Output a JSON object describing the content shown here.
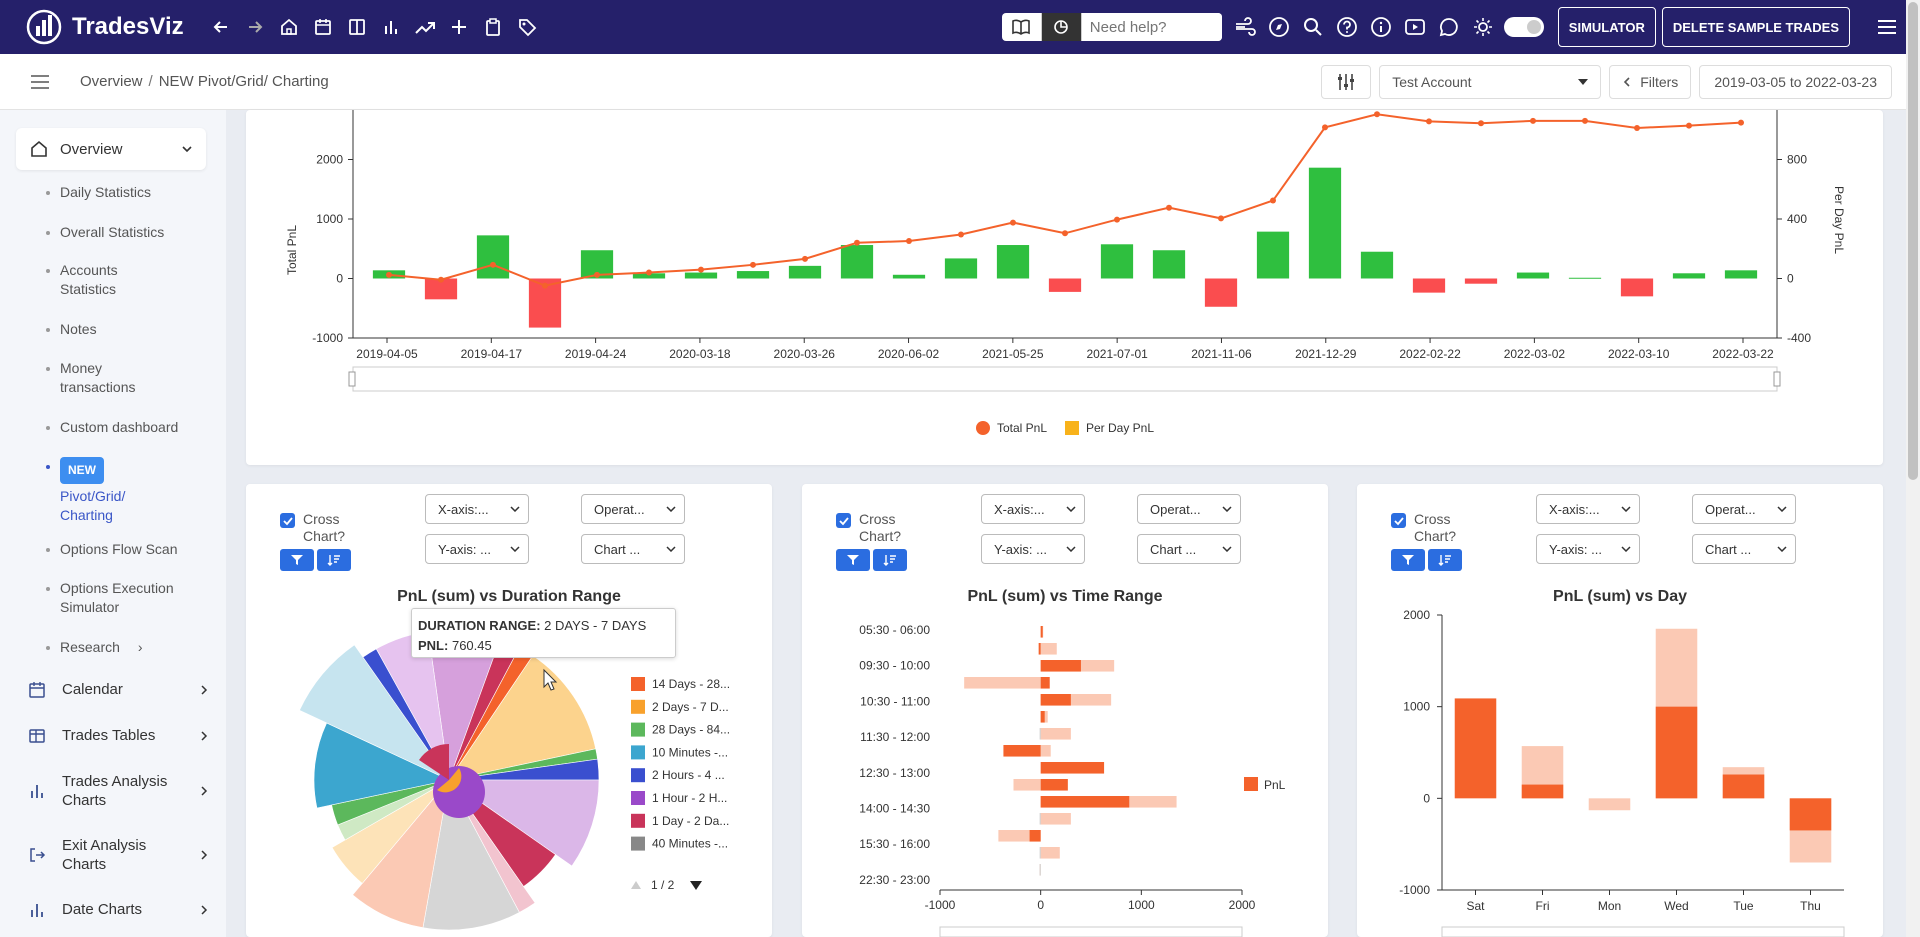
{
  "app": {
    "name": "TradesViz"
  },
  "topnav": {
    "search_placeholder": "Need help?",
    "simulator_label": "SIMULATOR",
    "delete_label": "DELETE SAMPLE TRADES"
  },
  "breadcrumb": {
    "root": "Overview",
    "separator": "/",
    "current": "NEW Pivot/Grid/ Charting"
  },
  "toolbar": {
    "account": "Test Account",
    "filters_label": "Filters",
    "date_range": "2019-03-05 to 2022-03-23"
  },
  "sidebar": {
    "overview_label": "Overview",
    "sub_items": [
      "Daily Statistics",
      "Overall Statistics",
      "Accounts Statistics",
      "Notes",
      "Money transactions",
      "Custom dashboard"
    ],
    "active": {
      "badge": "NEW",
      "label": "Pivot/Grid/ Charting"
    },
    "sub_items_2": [
      "Options Flow Scan",
      "Options Execution Simulator",
      "Research"
    ],
    "main_items": [
      "Calendar",
      "Trades Tables",
      "Trades Analysis Charts",
      "Exit Analysis Charts",
      "Date Charts"
    ]
  },
  "controls": {
    "cross_chart_label": "Cross Chart?",
    "x_axis": "X-axis:...",
    "y_axis": "Y-axis: ...",
    "operation": "Operat...",
    "chart_type": "Chart ..."
  },
  "chart_data": [
    {
      "type": "bar",
      "title": "",
      "ylabel": "Total PnL",
      "ylabel_right": "Per Day PnL",
      "ylim": [
        -1000,
        3000
      ],
      "ylim_right": [
        -400,
        1200
      ],
      "yticks": [
        "2000",
        "1000",
        "0",
        "-1000"
      ],
      "yticks_right": [
        "800",
        "400",
        "0",
        "-400"
      ],
      "x_tick_labels": [
        "2019-04-05",
        "2019-04-17",
        "2019-04-24",
        "2020-03-18",
        "2020-03-26",
        "2020-06-02",
        "2021-05-25",
        "2021-07-01",
        "2021-11-06",
        "2021-12-29",
        "2022-02-22",
        "2022-03-02",
        "2022-03-10",
        "2022-03-22"
      ],
      "bar_values": [
        55,
        -140,
        290,
        -330,
        190,
        35,
        40,
        50,
        85,
        225,
        25,
        135,
        225,
        -90,
        230,
        190,
        -190,
        315,
        745,
        180,
        -95,
        -35,
        40,
        5,
        -120,
        35,
        55
      ],
      "line_values": [
        60,
        -20,
        230,
        -120,
        60,
        100,
        150,
        230,
        330,
        600,
        630,
        740,
        940,
        760,
        990,
        1190,
        1010,
        1310,
        2540,
        2760,
        2640,
        2610,
        2650,
        2650,
        2530,
        2570,
        2620
      ],
      "series": [
        {
          "name": "Total PnL",
          "color": "#f4622b"
        },
        {
          "name": "Per Day PnL",
          "color": "#f8b21a"
        }
      ]
    },
    {
      "type": "pie",
      "title": "PnL (sum) vs Duration Range",
      "legend": [
        "14 Days - 28...",
        "2 Days - 7 D...",
        "28 Days - 84...",
        "10 Minutes -...",
        "2 Hours - 4 ...",
        "1 Hour - 2 H...",
        "1 Day - 2 Da...",
        "40 Minutes -..."
      ],
      "legend_colors": [
        "#f4622b",
        "#f8a12c",
        "#5cb85c",
        "#3ca6cf",
        "#3a4fcf",
        "#9a49c9",
        "#c9345a",
        "#888888"
      ],
      "legend_page": "1 / 2",
      "tooltip": {
        "label": "DURATION RANGE:",
        "value": "2 DAYS - 7 DAYS",
        "pnl_label": "PNL:",
        "pnl_value": "760.45"
      }
    },
    {
      "type": "bar",
      "orientation": "horizontal",
      "title": "PnL (sum) vs Time Range",
      "categories": [
        "05:30 - 06:00",
        "09:30 - 10:00",
        "10:30 - 11:00",
        "11:30 - 12:00",
        "12:30 - 13:00",
        "14:00 - 14:30",
        "15:30 - 16:00",
        "22:30 - 23:00"
      ],
      "xticks": [
        "-1000",
        "0",
        "1000",
        "2000"
      ],
      "xlim": [
        -1000,
        2000
      ],
      "series_name": "PnL",
      "row_values": [
        20,
        -20,
        400,
        90,
        300,
        40,
        0,
        -370,
        630,
        270,
        880,
        0,
        -110,
        0,
        0
      ],
      "row_light": [
        25,
        160,
        730,
        -760,
        700,
        70,
        300,
        100,
        0,
        -270,
        1350,
        300,
        -420,
        190,
        -10
      ]
    },
    {
      "type": "bar",
      "title": "PnL (sum) vs Day",
      "categories": [
        "Sat",
        "Fri",
        "Mon",
        "Wed",
        "Tue",
        "Thu"
      ],
      "values": [
        1090,
        150,
        -130,
        1000,
        260,
        -350
      ],
      "values_light": [
        0,
        570,
        0,
        1850,
        340,
        -700
      ],
      "yticks": [
        "2000",
        "1000",
        "0",
        "-1000"
      ],
      "ylim": [
        -1000,
        2000
      ]
    }
  ]
}
